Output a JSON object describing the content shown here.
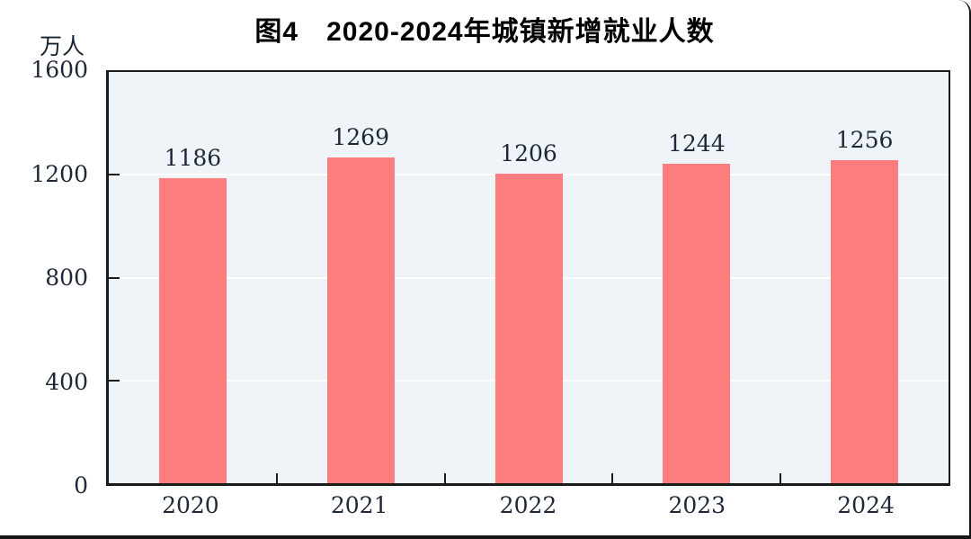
{
  "figure": {
    "title": "图4　2020-2024年城镇新增就业人数",
    "unit_label": "万人"
  },
  "chart_data": {
    "type": "bar",
    "title": "图4　2020-2024年城镇新增就业人数",
    "unit": "万人",
    "categories": [
      "2020",
      "2021",
      "2022",
      "2023",
      "2024"
    ],
    "values": [
      1186,
      1269,
      1206,
      1244,
      1256
    ],
    "ylim": [
      0,
      1600
    ],
    "yticks": [
      0,
      400,
      800,
      1200,
      1600
    ],
    "gridlines_at": [
      400,
      800,
      1200
    ],
    "legend_position": "none",
    "grid": "horizontal",
    "colors": {
      "bar": "#FB7D7D",
      "plot_background": "#EFF4F8",
      "gridline": "#FFFFFF",
      "axis": "#1A1A1A",
      "text": "#1D2736",
      "frame_border": "#141414"
    }
  }
}
